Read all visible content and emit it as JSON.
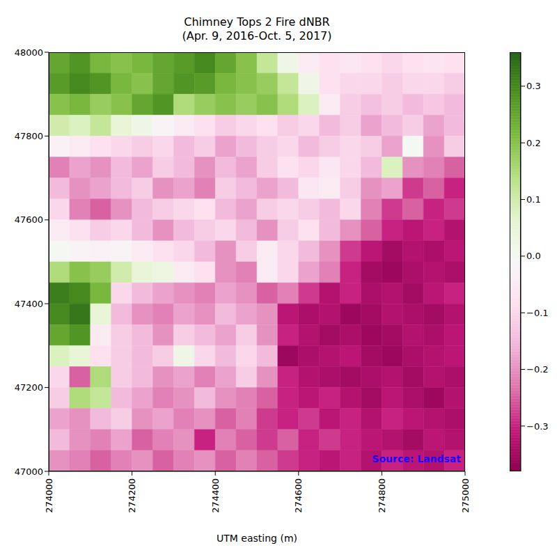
{
  "chart_data": {
    "type": "heatmap",
    "title": "Chimney Tops 2 Fire dNBR\n(Apr. 9, 2016-Oct. 5, 2017)",
    "xlabel": "UTM easting (m)",
    "annotations": [
      "Source: Landsat"
    ],
    "xlim": [
      274000,
      275000
    ],
    "xticks": [
      274000,
      274200,
      274400,
      274600,
      274800,
      275000
    ],
    "ylim": [
      47000,
      48000
    ],
    "yticks": [
      47000,
      47200,
      47400,
      47600,
      47800,
      48000
    ],
    "cells": [
      [
        0.25,
        0.28,
        0.22,
        0.2,
        0.22,
        0.25,
        0.27,
        0.3,
        0.25,
        0.2,
        0.12,
        0.02,
        -0.05,
        -0.08,
        -0.06,
        -0.08,
        -0.1,
        -0.08,
        -0.07,
        -0.08
      ],
      [
        0.27,
        0.3,
        0.28,
        0.22,
        0.2,
        0.25,
        0.28,
        0.27,
        0.22,
        0.2,
        0.18,
        0.12,
        0.02,
        -0.08,
        -0.1,
        -0.1,
        -0.12,
        -0.1,
        -0.1,
        -0.12
      ],
      [
        0.2,
        0.22,
        0.18,
        0.2,
        0.25,
        0.28,
        0.15,
        0.18,
        0.2,
        0.18,
        0.2,
        0.15,
        0.08,
        -0.05,
        -0.12,
        -0.14,
        -0.12,
        -0.15,
        -0.13,
        -0.15
      ],
      [
        0.1,
        0.08,
        0.12,
        0.05,
        0.02,
        -0.02,
        -0.05,
        -0.08,
        -0.12,
        -0.1,
        -0.08,
        -0.12,
        -0.1,
        -0.15,
        -0.12,
        -0.18,
        -0.15,
        -0.12,
        -0.18,
        -0.15
      ],
      [
        -0.03,
        -0.05,
        -0.08,
        -0.1,
        -0.12,
        -0.1,
        -0.15,
        -0.12,
        -0.18,
        -0.15,
        -0.12,
        -0.1,
        -0.15,
        -0.12,
        -0.1,
        -0.12,
        -0.18,
        0.0,
        -0.2,
        -0.12
      ],
      [
        -0.22,
        -0.18,
        -0.2,
        -0.15,
        -0.18,
        -0.12,
        -0.15,
        -0.2,
        -0.15,
        -0.18,
        -0.12,
        -0.08,
        -0.1,
        -0.06,
        -0.1,
        -0.15,
        0.08,
        -0.2,
        -0.22,
        -0.25
      ],
      [
        -0.15,
        -0.2,
        -0.18,
        -0.15,
        -0.12,
        -0.2,
        -0.18,
        -0.22,
        -0.12,
        -0.15,
        -0.18,
        -0.15,
        -0.06,
        -0.05,
        -0.12,
        -0.2,
        -0.18,
        -0.28,
        -0.25,
        -0.3
      ],
      [
        -0.1,
        -0.22,
        -0.25,
        -0.2,
        -0.15,
        -0.12,
        -0.1,
        -0.08,
        -0.15,
        -0.18,
        -0.12,
        -0.1,
        -0.12,
        -0.15,
        -0.1,
        -0.22,
        -0.28,
        -0.25,
        -0.3,
        -0.28
      ],
      [
        -0.05,
        -0.08,
        -0.12,
        -0.1,
        -0.15,
        -0.2,
        -0.15,
        -0.12,
        -0.1,
        -0.15,
        -0.2,
        -0.12,
        -0.08,
        -0.15,
        -0.2,
        -0.25,
        -0.3,
        -0.32,
        -0.3,
        -0.33
      ],
      [
        0.0,
        -0.02,
        -0.03,
        -0.02,
        -0.05,
        -0.08,
        -0.1,
        -0.15,
        -0.2,
        -0.12,
        -0.05,
        -0.1,
        -0.15,
        -0.2,
        -0.28,
        -0.32,
        -0.35,
        -0.33,
        -0.34,
        -0.32
      ],
      [
        0.15,
        0.2,
        0.18,
        0.1,
        0.05,
        0.03,
        -0.05,
        -0.08,
        -0.2,
        -0.22,
        -0.05,
        -0.1,
        -0.18,
        -0.22,
        -0.3,
        -0.35,
        -0.36,
        -0.34,
        -0.33,
        -0.34
      ],
      [
        0.32,
        0.3,
        0.22,
        -0.1,
        -0.15,
        -0.18,
        -0.2,
        -0.22,
        -0.18,
        -0.2,
        -0.25,
        -0.22,
        -0.28,
        -0.33,
        -0.3,
        -0.34,
        -0.33,
        -0.35,
        -0.32,
        -0.3
      ],
      [
        0.3,
        0.33,
        0.05,
        -0.15,
        -0.2,
        -0.22,
        -0.18,
        -0.2,
        -0.15,
        -0.18,
        -0.2,
        -0.32,
        -0.34,
        -0.33,
        -0.36,
        -0.35,
        -0.33,
        -0.34,
        -0.35,
        -0.33
      ],
      [
        0.25,
        0.28,
        -0.05,
        -0.12,
        -0.15,
        -0.2,
        -0.12,
        -0.15,
        -0.18,
        -0.12,
        -0.2,
        -0.3,
        -0.33,
        -0.35,
        -0.34,
        -0.36,
        -0.35,
        -0.33,
        -0.34,
        -0.32
      ],
      [
        0.08,
        0.05,
        -0.08,
        -0.12,
        -0.15,
        -0.12,
        0.02,
        -0.1,
        -0.15,
        -0.1,
        -0.15,
        -0.36,
        -0.34,
        -0.33,
        -0.32,
        -0.35,
        -0.36,
        -0.34,
        -0.33,
        -0.32
      ],
      [
        -0.1,
        -0.25,
        0.15,
        -0.12,
        -0.15,
        -0.2,
        -0.18,
        -0.22,
        -0.18,
        -0.12,
        -0.2,
        -0.3,
        -0.33,
        -0.34,
        -0.35,
        -0.34,
        -0.33,
        -0.35,
        -0.33,
        -0.34
      ],
      [
        -0.12,
        0.15,
        0.12,
        -0.15,
        -0.18,
        -0.22,
        -0.2,
        -0.15,
        -0.2,
        -0.22,
        -0.25,
        -0.3,
        -0.32,
        -0.3,
        -0.33,
        -0.35,
        -0.32,
        -0.34,
        -0.36,
        -0.33
      ],
      [
        -0.18,
        -0.2,
        -0.15,
        -0.12,
        -0.2,
        -0.18,
        -0.22,
        -0.2,
        -0.25,
        -0.22,
        -0.28,
        -0.3,
        -0.28,
        -0.32,
        -0.3,
        -0.33,
        -0.3,
        -0.32,
        -0.33,
        -0.34
      ],
      [
        -0.15,
        -0.2,
        -0.22,
        -0.18,
        -0.25,
        -0.22,
        -0.2,
        -0.3,
        -0.22,
        -0.25,
        -0.28,
        -0.25,
        -0.3,
        -0.28,
        -0.3,
        -0.32,
        -0.33,
        -0.35,
        -0.32,
        -0.33
      ],
      [
        -0.2,
        -0.22,
        -0.25,
        -0.22,
        -0.2,
        -0.25,
        -0.22,
        -0.2,
        -0.25,
        -0.22,
        -0.25,
        -0.28,
        -0.3,
        -0.32,
        -0.3,
        -0.33,
        -0.3,
        -0.32,
        -0.33,
        -0.3
      ]
    ],
    "colorbar_range": [
      -0.38,
      0.36
    ],
    "colorbar_ticks": [
      {
        "value": -0.3,
        "label": "−0.3"
      },
      {
        "value": -0.2,
        "label": "−0.2"
      },
      {
        "value": -0.1,
        "label": "−0.1"
      },
      {
        "value": 0,
        "label": "0.0"
      },
      0.1,
      0.2,
      0.3
    ]
  }
}
